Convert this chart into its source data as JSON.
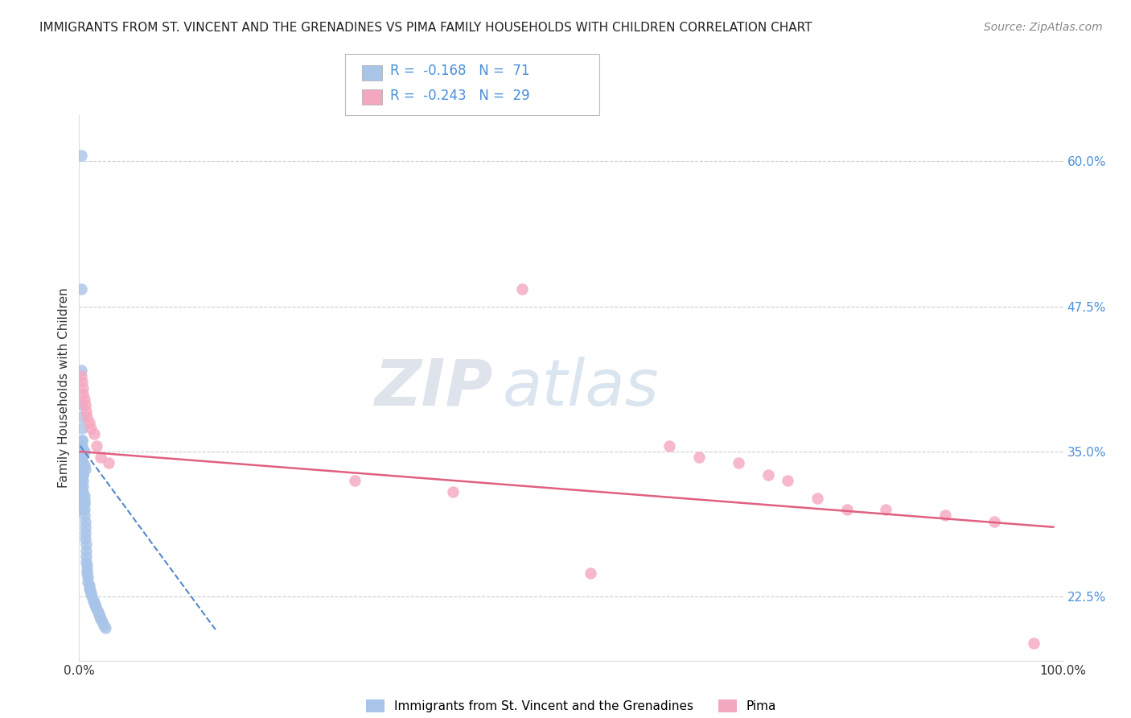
{
  "title": "IMMIGRANTS FROM ST. VINCENT AND THE GRENADINES VS PIMA FAMILY HOUSEHOLDS WITH CHILDREN CORRELATION CHART",
  "source": "Source: ZipAtlas.com",
  "ylabel": "Family Households with Children",
  "legend_label1": "Immigrants from St. Vincent and the Grenadines",
  "legend_label2": "Pima",
  "R1": -0.168,
  "N1": 71,
  "R2": -0.243,
  "N2": 29,
  "color1": "#a8c4e8",
  "color2": "#f4a8c0",
  "trendline1_color": "#5588cc",
  "trendline2_color": "#e06080",
  "background": "#ffffff",
  "xlim": [
    0.0,
    1.0
  ],
  "ylim": [
    0.17,
    0.64
  ],
  "yticks": [
    0.225,
    0.35,
    0.475,
    0.6
  ],
  "ytick_labels": [
    "22.5%",
    "35.0%",
    "47.5%",
    "60.0%"
  ],
  "watermark": "ZIPatlas",
  "blue_x": [
    0.002,
    0.002,
    0.002,
    0.003,
    0.003,
    0.003,
    0.003,
    0.003,
    0.003,
    0.003,
    0.004,
    0.004,
    0.004,
    0.004,
    0.004,
    0.004,
    0.005,
    0.005,
    0.005,
    0.005,
    0.005,
    0.006,
    0.006,
    0.006,
    0.006,
    0.007,
    0.007,
    0.007,
    0.007,
    0.008,
    0.008,
    0.008,
    0.009,
    0.009,
    0.01,
    0.01,
    0.011,
    0.012,
    0.013,
    0.014,
    0.015,
    0.016,
    0.017,
    0.018,
    0.019,
    0.02,
    0.021,
    0.022,
    0.023,
    0.025,
    0.027,
    0.002,
    0.003,
    0.004,
    0.005,
    0.006,
    0.003,
    0.004,
    0.003,
    0.004,
    0.005,
    0.003,
    0.002,
    0.002,
    0.002,
    0.002,
    0.002,
    0.002,
    0.003,
    0.003,
    0.003
  ],
  "blue_y": [
    0.605,
    0.49,
    0.42,
    0.39,
    0.38,
    0.37,
    0.36,
    0.35,
    0.345,
    0.34,
    0.338,
    0.335,
    0.33,
    0.325,
    0.32,
    0.315,
    0.312,
    0.308,
    0.305,
    0.3,
    0.295,
    0.29,
    0.285,
    0.28,
    0.275,
    0.27,
    0.265,
    0.26,
    0.255,
    0.252,
    0.248,
    0.245,
    0.242,
    0.238,
    0.235,
    0.232,
    0.23,
    0.228,
    0.225,
    0.222,
    0.22,
    0.218,
    0.216,
    0.214,
    0.212,
    0.21,
    0.208,
    0.206,
    0.204,
    0.2,
    0.198,
    0.348,
    0.343,
    0.34,
    0.338,
    0.335,
    0.332,
    0.33,
    0.355,
    0.352,
    0.35,
    0.36,
    0.33,
    0.326,
    0.322,
    0.318,
    0.314,
    0.31,
    0.307,
    0.304,
    0.3
  ],
  "pink_x": [
    0.002,
    0.003,
    0.004,
    0.004,
    0.005,
    0.006,
    0.007,
    0.008,
    0.01,
    0.012,
    0.015,
    0.018,
    0.022,
    0.03,
    0.28,
    0.38,
    0.45,
    0.52,
    0.6,
    0.63,
    0.67,
    0.7,
    0.72,
    0.75,
    0.78,
    0.82,
    0.88,
    0.93,
    0.97
  ],
  "pink_y": [
    0.415,
    0.41,
    0.405,
    0.4,
    0.395,
    0.39,
    0.385,
    0.38,
    0.375,
    0.37,
    0.365,
    0.355,
    0.345,
    0.34,
    0.325,
    0.315,
    0.49,
    0.245,
    0.355,
    0.345,
    0.34,
    0.33,
    0.325,
    0.31,
    0.3,
    0.3,
    0.295,
    0.29,
    0.185
  ],
  "trendline1_x": [
    0.001,
    0.14
  ],
  "trendline1_y": [
    0.355,
    0.195
  ],
  "trendline2_x": [
    0.001,
    0.99
  ],
  "trendline2_y": [
    0.35,
    0.285
  ]
}
